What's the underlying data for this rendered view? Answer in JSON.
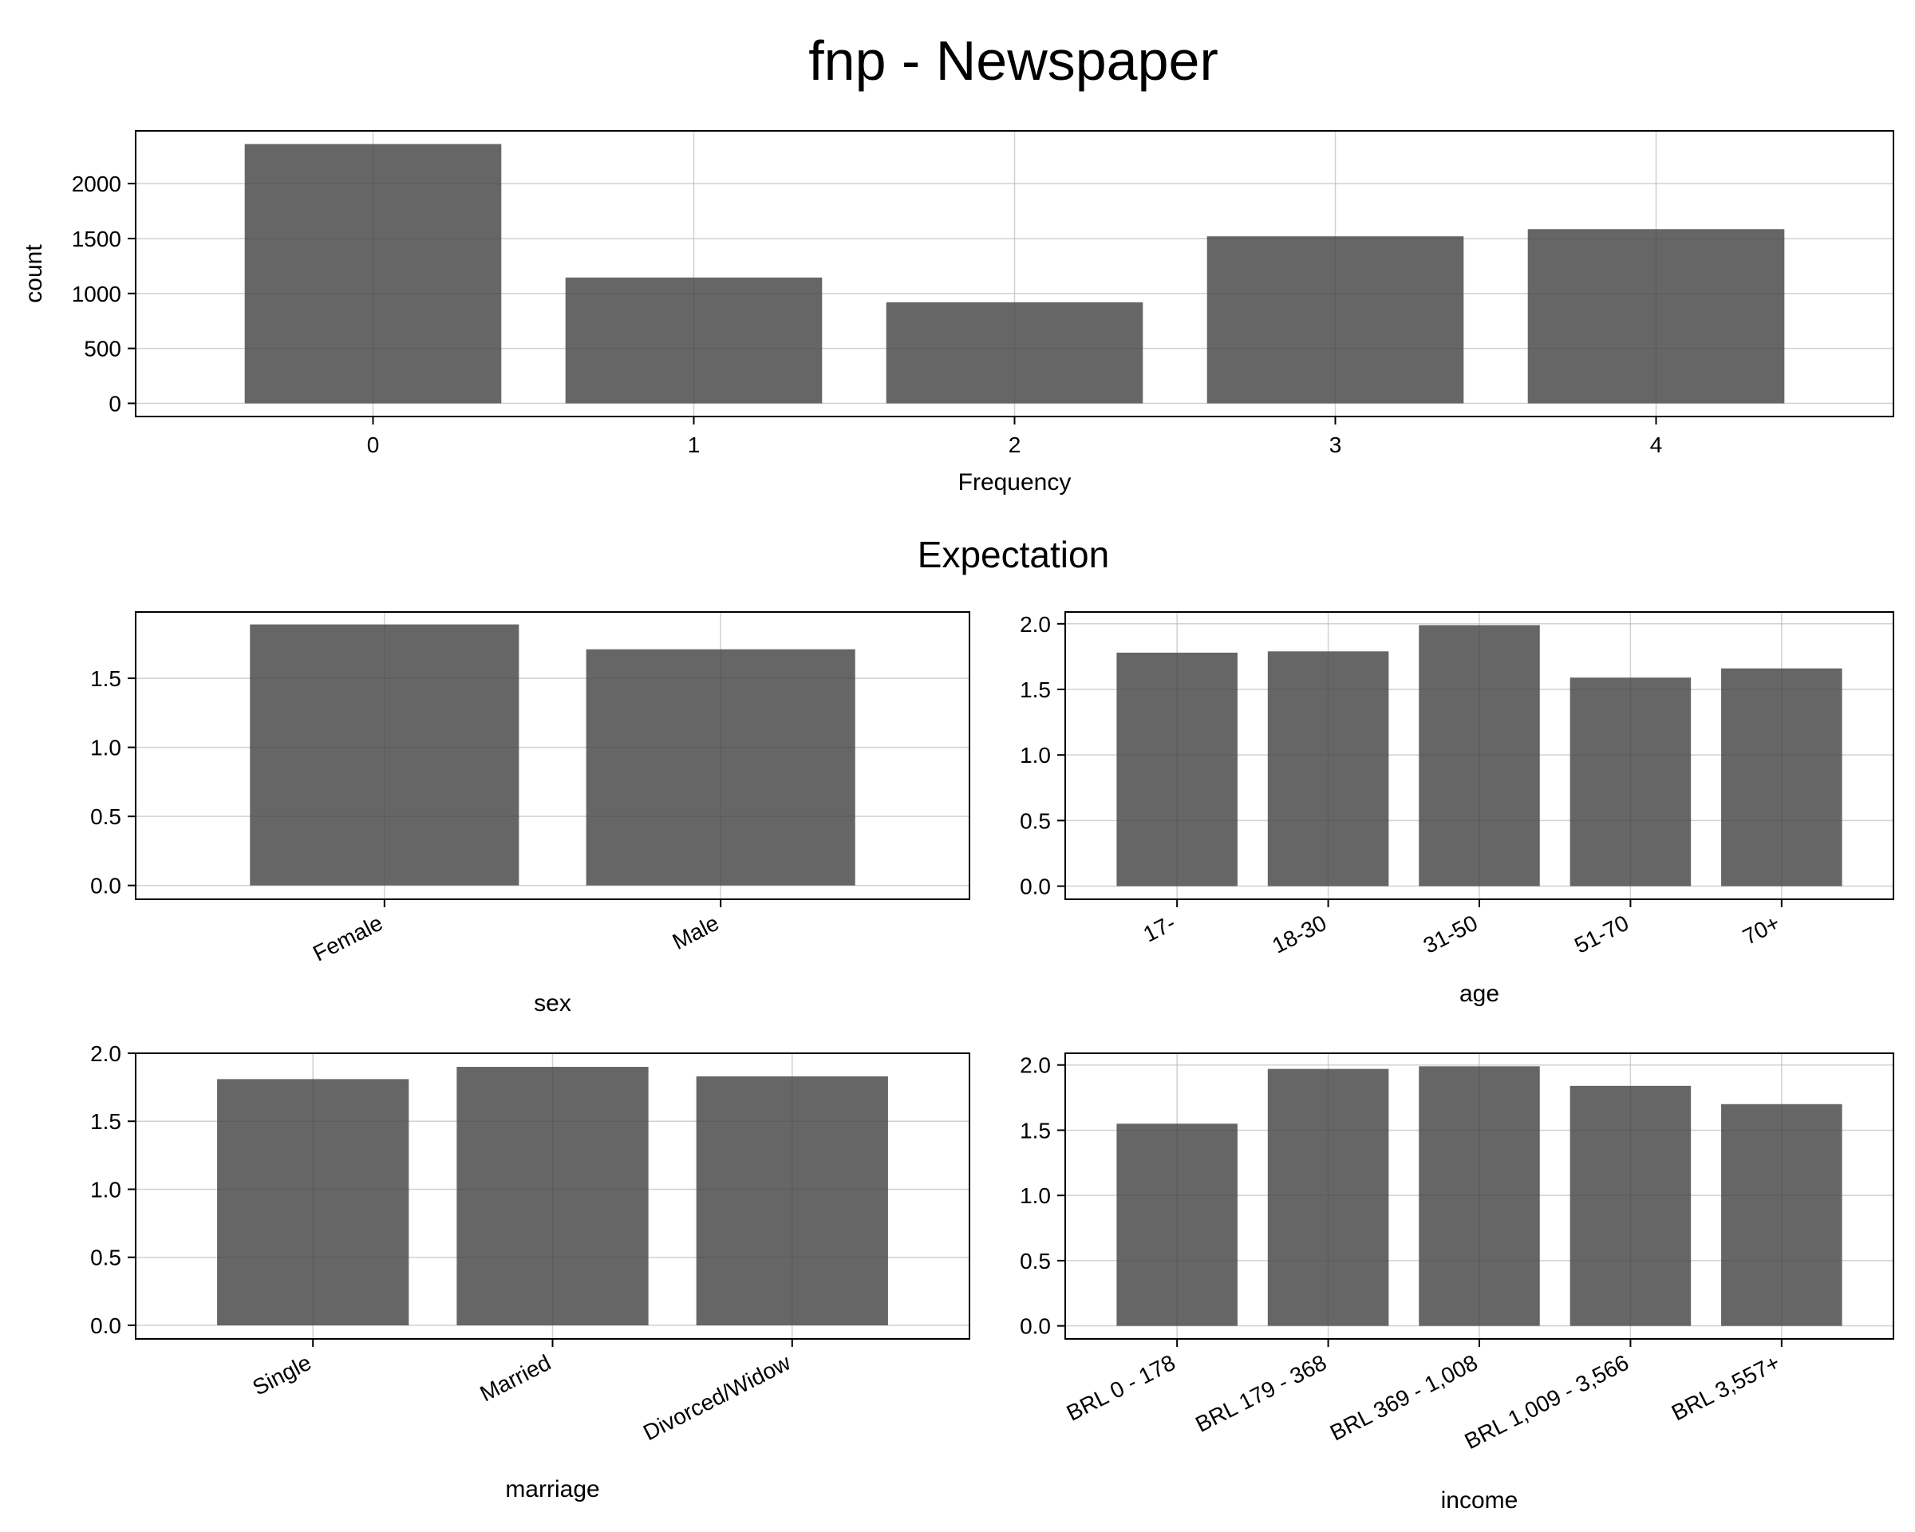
{
  "title": "fnp - Newspaper",
  "subtitle": "Expectation",
  "bar_color": "#666666",
  "chart_data": [
    {
      "type": "bar",
      "categories": [
        "0",
        "1",
        "2",
        "3",
        "4"
      ],
      "values": [
        2360,
        1145,
        920,
        1520,
        1585
      ],
      "xlabel": "Frequency",
      "ylabel": "count",
      "ylim": [
        -120,
        2480
      ],
      "yticks": [
        "0",
        "500",
        "1000",
        "1500",
        "2000"
      ],
      "grid": true
    },
    {
      "type": "bar",
      "categories": [
        "Female",
        "Male"
      ],
      "values": [
        1.89,
        1.71
      ],
      "xlabel": "sex",
      "ylabel": "",
      "ylim": [
        -0.1,
        1.98
      ],
      "yticks": [
        "0.0",
        "0.5",
        "1.0",
        "1.5"
      ],
      "grid": true
    },
    {
      "type": "bar",
      "categories": [
        "17-",
        "18-30",
        "31-50",
        "51-70",
        "70+"
      ],
      "values": [
        1.78,
        1.79,
        1.99,
        1.59,
        1.66
      ],
      "xlabel": "age",
      "ylabel": "",
      "ylim": [
        -0.1,
        2.09
      ],
      "yticks": [
        "0.0",
        "0.5",
        "1.0",
        "1.5",
        "2.0"
      ],
      "grid": true
    },
    {
      "type": "bar",
      "categories": [
        "Single",
        "Married",
        "Divorced/Widow"
      ],
      "values": [
        1.81,
        1.9,
        1.83
      ],
      "xlabel": "marriage",
      "ylabel": "",
      "ylim": [
        -0.1,
        2.0
      ],
      "yticks": [
        "0.0",
        "0.5",
        "1.0",
        "1.5",
        "2.0"
      ],
      "grid": true
    },
    {
      "type": "bar",
      "categories": [
        "BRL 0 - 178",
        "BRL 179 - 368",
        "BRL 369 - 1,008",
        "BRL 1,009 - 3,566",
        "BRL 3,557+"
      ],
      "values": [
        1.55,
        1.97,
        1.99,
        1.84,
        1.7
      ],
      "xlabel": "income",
      "ylabel": "",
      "ylim": [
        -0.1,
        2.09
      ],
      "yticks": [
        "0.0",
        "0.5",
        "1.0",
        "1.5",
        "2.0"
      ],
      "grid": true
    }
  ]
}
